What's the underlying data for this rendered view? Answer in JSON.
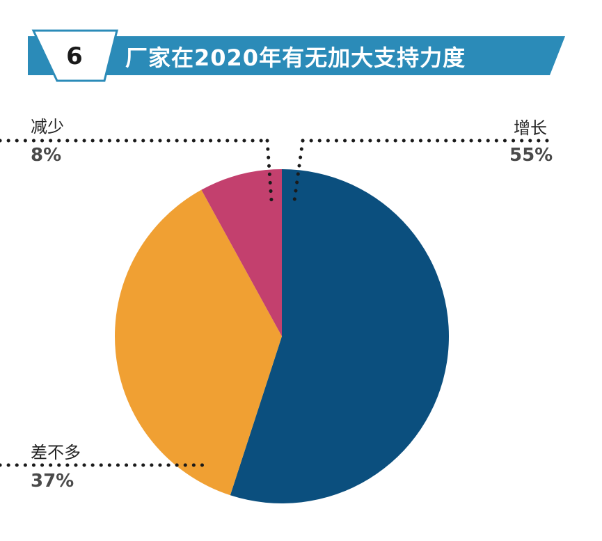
{
  "header": {
    "number": "6",
    "title": "厂家在2020年有无加大支持力度"
  },
  "colors": {
    "banner": "#2b8bb8",
    "increase": "#0b4f7e",
    "same": "#f0a033",
    "decrease": "#c3406e"
  },
  "chart_data": {
    "type": "pie",
    "title": "厂家在2020年有无加大支持力度",
    "slices": [
      {
        "label": "增长",
        "value": 55,
        "display": "55%",
        "color": "#0b4f7e"
      },
      {
        "label": "差不多",
        "value": 37,
        "display": "37%",
        "color": "#f0a033"
      },
      {
        "label": "减少",
        "value": 8,
        "display": "8%",
        "color": "#c3406e"
      }
    ]
  }
}
